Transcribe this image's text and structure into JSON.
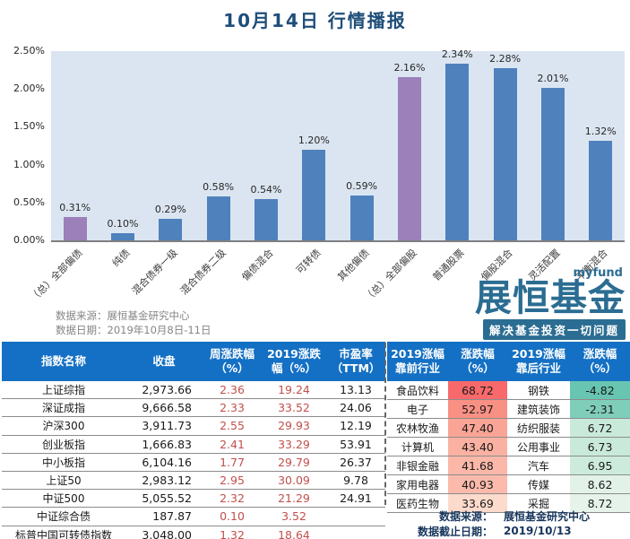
{
  "title": "10月14日  行情播报",
  "chart_data": {
    "type": "bar",
    "title": "10月14日  行情播报",
    "categories": [
      "（总）全部偏债",
      "纯债",
      "混合债券一级",
      "混合债券二级",
      "偏债混合",
      "可转债",
      "其他偏债",
      "（总）全部偏股",
      "普通股票",
      "偏股混合",
      "灵活配置",
      "平衡混合"
    ],
    "values": [
      0.31,
      0.1,
      0.29,
      0.58,
      0.54,
      1.2,
      0.59,
      2.16,
      2.34,
      2.28,
      2.01,
      1.32
    ],
    "value_labels": [
      "0.31%",
      "0.10%",
      "0.29%",
      "0.58%",
      "0.54%",
      "1.20%",
      "0.59%",
      "2.16%",
      "2.34%",
      "2.28%",
      "2.01%",
      "1.32%"
    ],
    "yticks": [
      "2.50%",
      "2.00%",
      "1.50%",
      "1.00%",
      "0.50%",
      "0.00%"
    ],
    "ylim": [
      0,
      2.5
    ],
    "grid": false,
    "legend": false,
    "plot_bg": "#dbe5f1",
    "bar_color_default": "#4f81bd",
    "bar_color_highlight": "#9b80ba",
    "highlight_indices": [
      0,
      7
    ]
  },
  "chart_source": {
    "line1": "数据来源：展恒基金研究中心",
    "line2": "数据日期：2019年10月8日-11日"
  },
  "logo": {
    "brand_en": "myfund",
    "brand_cn": "展恒基金",
    "slogan": "解决基金投资一切问题",
    "color": "#2b6d92"
  },
  "index_table": {
    "header_bg": "#1470c4",
    "chg_color": "#c0504d",
    "headers": [
      "指数名称",
      "收盘",
      "周涨跌幅（%）",
      "2019涨跌幅（%）",
      "市盈率（TTM）"
    ],
    "rows": [
      {
        "name": "上证综指",
        "close": "2,973.66",
        "week_chg": "2.36",
        "ytd_chg": "19.24",
        "pe": "13.13"
      },
      {
        "name": "深证成指",
        "close": "9,666.58",
        "week_chg": "2.33",
        "ytd_chg": "33.52",
        "pe": "24.06"
      },
      {
        "name": "沪深300",
        "close": "3,911.73",
        "week_chg": "2.55",
        "ytd_chg": "29.93",
        "pe": "12.19"
      },
      {
        "name": "创业板指",
        "close": "1,666.83",
        "week_chg": "2.41",
        "ytd_chg": "33.29",
        "pe": "53.91"
      },
      {
        "name": "中小板指",
        "close": "6,104.16",
        "week_chg": "1.77",
        "ytd_chg": "29.79",
        "pe": "26.37"
      },
      {
        "name": "上证50",
        "close": "2,983.12",
        "week_chg": "2.95",
        "ytd_chg": "30.09",
        "pe": "9.78"
      },
      {
        "name": "中证500",
        "close": "5,055.52",
        "week_chg": "2.32",
        "ytd_chg": "21.29",
        "pe": "24.91"
      },
      {
        "name": "中证综合债",
        "close": "187.87",
        "week_chg": "0.10",
        "ytd_chg": "3.52",
        "pe": ""
      },
      {
        "name": "标普中国可转债指数",
        "close": "3,048.00",
        "week_chg": "1.32",
        "ytd_chg": "18.64",
        "pe": ""
      }
    ]
  },
  "industry_table": {
    "header_bg": "#1470c4",
    "headers": [
      "2019涨幅靠前行业",
      "涨跌幅（%）",
      "2019涨幅靠后行业",
      "涨跌幅（%）"
    ],
    "rows": [
      {
        "top": "食品饮料",
        "top_chg": "68.72",
        "top_bg": "#f8696b",
        "bottom": "钢铁",
        "bottom_chg": "-4.82",
        "bottom_bg": "#68c5b1"
      },
      {
        "top": "电子",
        "top_chg": "52.97",
        "top_bg": "#f99084",
        "bottom": "建筑装饰",
        "bottom_chg": "-2.31",
        "bottom_bg": "#7fceba"
      },
      {
        "top": "农林牧渔",
        "top_chg": "47.40",
        "top_bg": "#faa496",
        "bottom": "纺织服装",
        "bottom_chg": "6.72",
        "bottom_bg": "#c9e9db"
      },
      {
        "top": "计算机",
        "top_chg": "43.40",
        "top_bg": "#fbb1a2",
        "bottom": "公用事业",
        "bottom_chg": "6.73",
        "bottom_bg": "#c9e9db"
      },
      {
        "top": "非银金融",
        "top_chg": "41.68",
        "top_bg": "#fbb7a8",
        "bottom": "汽车",
        "bottom_chg": "6.95",
        "bottom_bg": "#cdebdd"
      },
      {
        "top": "家用电器",
        "top_chg": "40.93",
        "top_bg": "#fbbaab",
        "bottom": "传媒",
        "bottom_chg": "8.62",
        "bottom_bg": "#e2f2e9"
      },
      {
        "top": "医药生物",
        "top_chg": "33.69",
        "top_bg": "#fcdacc",
        "bottom": "采掘",
        "bottom_chg": "8.72",
        "bottom_bg": "#e5f3eb"
      }
    ],
    "footer": [
      {
        "label": "数据来源：",
        "value": "展恒基金研究中心"
      },
      {
        "label": "数据截止日期：",
        "value": "2019/10/13"
      }
    ]
  }
}
